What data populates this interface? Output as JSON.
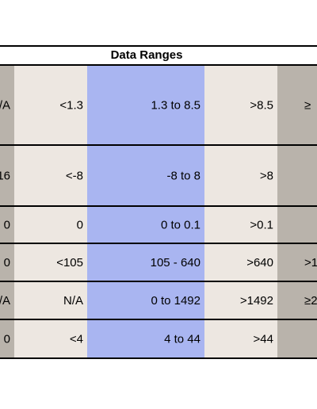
{
  "table": {
    "title": "Data Ranges",
    "rows": [
      [
        "/A",
        "<1.3",
        "1.3 to 8.5",
        ">8.5",
        "≥"
      ],
      [
        "16",
        "<-8",
        "-8 to 8",
        ">8",
        null
      ],
      [
        "0",
        "0",
        "0 to 0.1",
        ">0.1",
        null
      ],
      [
        "0",
        "<105",
        "105 - 640",
        ">640",
        ">1"
      ],
      [
        "/A",
        "N/A",
        "0 to 1492",
        ">1492",
        "≥2"
      ],
      [
        "0",
        "<4",
        "4 to 44",
        ">44",
        null
      ]
    ]
  }
}
